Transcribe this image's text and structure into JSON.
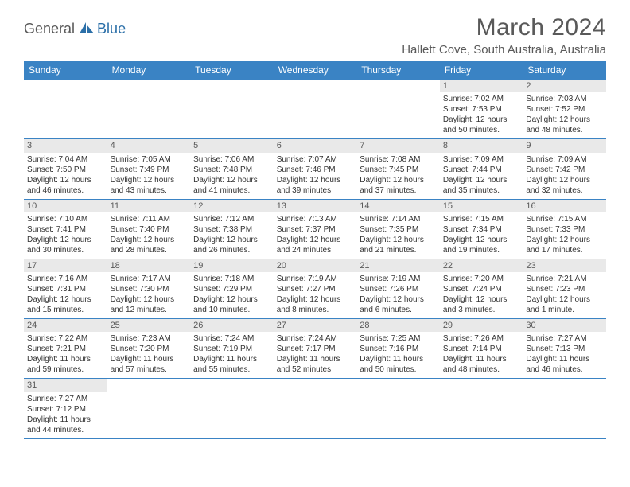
{
  "logo": {
    "part1": "General",
    "part2": "Blue"
  },
  "header": {
    "title": "March 2024",
    "location": "Hallett Cove, South Australia, Australia"
  },
  "style": {
    "header_bg": "#3a83c4",
    "header_fg": "#ffffff",
    "cell_border": "#3a83c4",
    "daynum_bg": "#e9e9e9",
    "text_color": "#333333",
    "title_color": "#595959"
  },
  "calendar": {
    "day_headers": [
      "Sunday",
      "Monday",
      "Tuesday",
      "Wednesday",
      "Thursday",
      "Friday",
      "Saturday"
    ],
    "weeks": [
      [
        null,
        null,
        null,
        null,
        null,
        {
          "n": "1",
          "sr": "Sunrise: 7:02 AM",
          "ss": "Sunset: 7:53 PM",
          "d1": "Daylight: 12 hours",
          "d2": "and 50 minutes."
        },
        {
          "n": "2",
          "sr": "Sunrise: 7:03 AM",
          "ss": "Sunset: 7:52 PM",
          "d1": "Daylight: 12 hours",
          "d2": "and 48 minutes."
        }
      ],
      [
        {
          "n": "3",
          "sr": "Sunrise: 7:04 AM",
          "ss": "Sunset: 7:50 PM",
          "d1": "Daylight: 12 hours",
          "d2": "and 46 minutes."
        },
        {
          "n": "4",
          "sr": "Sunrise: 7:05 AM",
          "ss": "Sunset: 7:49 PM",
          "d1": "Daylight: 12 hours",
          "d2": "and 43 minutes."
        },
        {
          "n": "5",
          "sr": "Sunrise: 7:06 AM",
          "ss": "Sunset: 7:48 PM",
          "d1": "Daylight: 12 hours",
          "d2": "and 41 minutes."
        },
        {
          "n": "6",
          "sr": "Sunrise: 7:07 AM",
          "ss": "Sunset: 7:46 PM",
          "d1": "Daylight: 12 hours",
          "d2": "and 39 minutes."
        },
        {
          "n": "7",
          "sr": "Sunrise: 7:08 AM",
          "ss": "Sunset: 7:45 PM",
          "d1": "Daylight: 12 hours",
          "d2": "and 37 minutes."
        },
        {
          "n": "8",
          "sr": "Sunrise: 7:09 AM",
          "ss": "Sunset: 7:44 PM",
          "d1": "Daylight: 12 hours",
          "d2": "and 35 minutes."
        },
        {
          "n": "9",
          "sr": "Sunrise: 7:09 AM",
          "ss": "Sunset: 7:42 PM",
          "d1": "Daylight: 12 hours",
          "d2": "and 32 minutes."
        }
      ],
      [
        {
          "n": "10",
          "sr": "Sunrise: 7:10 AM",
          "ss": "Sunset: 7:41 PM",
          "d1": "Daylight: 12 hours",
          "d2": "and 30 minutes."
        },
        {
          "n": "11",
          "sr": "Sunrise: 7:11 AM",
          "ss": "Sunset: 7:40 PM",
          "d1": "Daylight: 12 hours",
          "d2": "and 28 minutes."
        },
        {
          "n": "12",
          "sr": "Sunrise: 7:12 AM",
          "ss": "Sunset: 7:38 PM",
          "d1": "Daylight: 12 hours",
          "d2": "and 26 minutes."
        },
        {
          "n": "13",
          "sr": "Sunrise: 7:13 AM",
          "ss": "Sunset: 7:37 PM",
          "d1": "Daylight: 12 hours",
          "d2": "and 24 minutes."
        },
        {
          "n": "14",
          "sr": "Sunrise: 7:14 AM",
          "ss": "Sunset: 7:35 PM",
          "d1": "Daylight: 12 hours",
          "d2": "and 21 minutes."
        },
        {
          "n": "15",
          "sr": "Sunrise: 7:15 AM",
          "ss": "Sunset: 7:34 PM",
          "d1": "Daylight: 12 hours",
          "d2": "and 19 minutes."
        },
        {
          "n": "16",
          "sr": "Sunrise: 7:15 AM",
          "ss": "Sunset: 7:33 PM",
          "d1": "Daylight: 12 hours",
          "d2": "and 17 minutes."
        }
      ],
      [
        {
          "n": "17",
          "sr": "Sunrise: 7:16 AM",
          "ss": "Sunset: 7:31 PM",
          "d1": "Daylight: 12 hours",
          "d2": "and 15 minutes."
        },
        {
          "n": "18",
          "sr": "Sunrise: 7:17 AM",
          "ss": "Sunset: 7:30 PM",
          "d1": "Daylight: 12 hours",
          "d2": "and 12 minutes."
        },
        {
          "n": "19",
          "sr": "Sunrise: 7:18 AM",
          "ss": "Sunset: 7:29 PM",
          "d1": "Daylight: 12 hours",
          "d2": "and 10 minutes."
        },
        {
          "n": "20",
          "sr": "Sunrise: 7:19 AM",
          "ss": "Sunset: 7:27 PM",
          "d1": "Daylight: 12 hours",
          "d2": "and 8 minutes."
        },
        {
          "n": "21",
          "sr": "Sunrise: 7:19 AM",
          "ss": "Sunset: 7:26 PM",
          "d1": "Daylight: 12 hours",
          "d2": "and 6 minutes."
        },
        {
          "n": "22",
          "sr": "Sunrise: 7:20 AM",
          "ss": "Sunset: 7:24 PM",
          "d1": "Daylight: 12 hours",
          "d2": "and 3 minutes."
        },
        {
          "n": "23",
          "sr": "Sunrise: 7:21 AM",
          "ss": "Sunset: 7:23 PM",
          "d1": "Daylight: 12 hours",
          "d2": "and 1 minute."
        }
      ],
      [
        {
          "n": "24",
          "sr": "Sunrise: 7:22 AM",
          "ss": "Sunset: 7:21 PM",
          "d1": "Daylight: 11 hours",
          "d2": "and 59 minutes."
        },
        {
          "n": "25",
          "sr": "Sunrise: 7:23 AM",
          "ss": "Sunset: 7:20 PM",
          "d1": "Daylight: 11 hours",
          "d2": "and 57 minutes."
        },
        {
          "n": "26",
          "sr": "Sunrise: 7:24 AM",
          "ss": "Sunset: 7:19 PM",
          "d1": "Daylight: 11 hours",
          "d2": "and 55 minutes."
        },
        {
          "n": "27",
          "sr": "Sunrise: 7:24 AM",
          "ss": "Sunset: 7:17 PM",
          "d1": "Daylight: 11 hours",
          "d2": "and 52 minutes."
        },
        {
          "n": "28",
          "sr": "Sunrise: 7:25 AM",
          "ss": "Sunset: 7:16 PM",
          "d1": "Daylight: 11 hours",
          "d2": "and 50 minutes."
        },
        {
          "n": "29",
          "sr": "Sunrise: 7:26 AM",
          "ss": "Sunset: 7:14 PM",
          "d1": "Daylight: 11 hours",
          "d2": "and 48 minutes."
        },
        {
          "n": "30",
          "sr": "Sunrise: 7:27 AM",
          "ss": "Sunset: 7:13 PM",
          "d1": "Daylight: 11 hours",
          "d2": "and 46 minutes."
        }
      ],
      [
        {
          "n": "31",
          "sr": "Sunrise: 7:27 AM",
          "ss": "Sunset: 7:12 PM",
          "d1": "Daylight: 11 hours",
          "d2": "and 44 minutes."
        },
        null,
        null,
        null,
        null,
        null,
        null
      ]
    ]
  }
}
